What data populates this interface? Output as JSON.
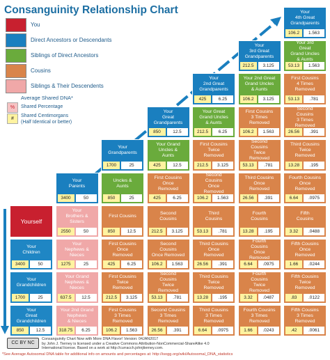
{
  "title": "Consanguinity Relationship Chart",
  "legend": [
    {
      "label": "You",
      "color": "#c8202f"
    },
    {
      "label": "Direct Ancestors or Descendants",
      "color": "#1a7fbf"
    },
    {
      "label": "Siblings of Direct Ancestors",
      "color": "#6aab3c"
    },
    {
      "label": "Cousins",
      "color": "#d9844a"
    },
    {
      "label": "Siblings & Their Descendents",
      "color": "#f0a8a8"
    }
  ],
  "avg_dna": {
    "heading": "Average Shared DNA*",
    "pct_chip": "%",
    "pct_label": "Shared Percentage",
    "cm_chip": "#",
    "cm_label": "Shared Centimorgans\n(Half Identical or better)"
  },
  "cells": [
    {
      "col": 0,
      "row": 6,
      "label": "Yourself",
      "type": "you"
    },
    {
      "col": 0,
      "row": 7,
      "label": "Your\nChildren",
      "pct": "3400",
      "cm": "50",
      "type": "lightblue"
    },
    {
      "col": 0,
      "row": 8,
      "label": "Your\nGrandchildren",
      "pct": "1700",
      "cm": "25",
      "type": "lightblue"
    },
    {
      "col": 0,
      "row": 9,
      "label": "Your\nGreat\nGrandchildren",
      "pct": "850",
      "cm": "12.5",
      "type": "lightblue"
    },
    {
      "col": 1,
      "row": 5,
      "label": "Your\nParents",
      "pct": "3400",
      "cm": "50",
      "type": "blue"
    },
    {
      "col": 1,
      "row": 6,
      "label": "Your\nBrothers &\nSisters",
      "pct": "2550",
      "cm": "50",
      "type": "pink"
    },
    {
      "col": 1,
      "row": 7,
      "label": "Your\nNephews &\nNieces",
      "pct": "1275",
      "cm": "25",
      "type": "pink"
    },
    {
      "col": 1,
      "row": 8,
      "label": "Your Grand\nNephews &\nNieces",
      "pct": "637.5",
      "cm": "12.5",
      "type": "pink"
    },
    {
      "col": 1,
      "row": 9,
      "label": "Your 2nd Grand\nNephews\n& Nieces",
      "pct": "318.75",
      "cm": "6.25",
      "type": "pink"
    },
    {
      "col": 2,
      "row": 4,
      "label": "Your\nGrandparents",
      "pct": "1700",
      "cm": "25",
      "type": "blue"
    },
    {
      "col": 2,
      "row": 5,
      "label": "Uncles &\nAunts",
      "pct": "850",
      "cm": "25",
      "type": "green"
    },
    {
      "col": 2,
      "row": 6,
      "label": "First Cousins",
      "pct": "850",
      "cm": "12.5",
      "type": "orange"
    },
    {
      "col": 2,
      "row": 7,
      "label": "First Cousins\nOnce\nRemoved",
      "pct": "425",
      "cm": "6.25",
      "type": "orange"
    },
    {
      "col": 2,
      "row": 8,
      "label": "First Cousins\nTwice\nRemoved",
      "pct": "212.5",
      "cm": "3.125",
      "type": "orange"
    },
    {
      "col": 2,
      "row": 9,
      "label": "First Cousins\n3 Times\nRemoved",
      "pct": "106.2",
      "cm": "1.563",
      "type": "orange"
    },
    {
      "col": 3,
      "row": 3,
      "label": "Your\nGreat\nGrandparents",
      "pct": "850",
      "cm": "12.5",
      "type": "blue"
    },
    {
      "col": 3,
      "row": 4,
      "label": "Your Grand\nUncles &\nAunts",
      "pct": "425",
      "cm": "12.5",
      "type": "green"
    },
    {
      "col": 3,
      "row": 5,
      "label": "First Cousins\nOnce\nRemoved",
      "pct": "425",
      "cm": "6.25",
      "type": "orange"
    },
    {
      "col": 3,
      "row": 6,
      "label": "Second\nCousins",
      "pct": "212.5",
      "cm": "3.125",
      "type": "orange"
    },
    {
      "col": 3,
      "row": 7,
      "label": "Second\nCousins\nOnce Removed",
      "pct": "106.2",
      "cm": "1.563",
      "type": "orange"
    },
    {
      "col": 3,
      "row": 8,
      "label": "Second\nCousins\nTwice\nRemoved",
      "pct": "53.13",
      "cm": ".781",
      "type": "orange"
    },
    {
      "col": 3,
      "row": 9,
      "label": "Second Cousins\n3 Times\nRemoved",
      "pct": "26.56",
      "cm": ".391",
      "type": "orange"
    },
    {
      "col": 4,
      "row": 2,
      "label": "Your\n2nd Great\nGrandparents",
      "pct": "425",
      "cm": "6.25",
      "type": "blue"
    },
    {
      "col": 4,
      "row": 3,
      "label": "Your Great\nGrand Uncles\n& Aunts",
      "pct": "212.5",
      "cm": "6.25",
      "type": "green"
    },
    {
      "col": 4,
      "row": 4,
      "label": "First Cousins\nTwice\nRemoved",
      "pct": "212.5",
      "cm": "3.125",
      "type": "orange"
    },
    {
      "col": 4,
      "row": 5,
      "label": "Second\nCousins\nOnce\nRemoved",
      "pct": "106.2",
      "cm": "1.563",
      "type": "orange"
    },
    {
      "col": 4,
      "row": 6,
      "label": "Third\nCousins",
      "pct": "53.13",
      "cm": ".781",
      "type": "orange"
    },
    {
      "col": 4,
      "row": 7,
      "label": "Third Cousins\nOnce\nRemoved",
      "pct": "26.56",
      "cm": ".391",
      "type": "orange"
    },
    {
      "col": 4,
      "row": 8,
      "label": "Third Cousins\nTwice\nRemoved",
      "pct": "13.28",
      "cm": ".195",
      "type": "orange"
    },
    {
      "col": 4,
      "row": 9,
      "label": "Third Cousins\n3 Times\nRemoved",
      "pct": "6.64",
      "cm": ".0975",
      "type": "orange"
    },
    {
      "col": 5,
      "row": 1,
      "label": "Your\n3rd Great\nGrandparents",
      "pct": "212.5",
      "cm": "3.125",
      "type": "blue"
    },
    {
      "col": 5,
      "row": 2,
      "label": "Your 2nd Great\nGrand Uncles\n& Aunts",
      "pct": "106.2",
      "cm": "3.125",
      "type": "green"
    },
    {
      "col": 5,
      "row": 3,
      "label": "First Cousins\n3 Times\nRemoved",
      "pct": "106.2",
      "cm": "1.563",
      "type": "orange"
    },
    {
      "col": 5,
      "row": 4,
      "label": "Second\nCousins\nTwice\nRemoved",
      "pct": "53.13",
      "cm": ".781",
      "type": "orange"
    },
    {
      "col": 5,
      "row": 5,
      "label": "Third Cousins\nOnce\nRemoved",
      "pct": "26.56",
      "cm": ".391",
      "type": "orange"
    },
    {
      "col": 5,
      "row": 6,
      "label": "Fourth\nCousins",
      "pct": "13.28",
      "cm": ".195",
      "type": "orange"
    },
    {
      "col": 5,
      "row": 7,
      "label": "Fourth\nCousins\nOnce\nRemoved",
      "pct": "6.64",
      "cm": ".0975",
      "type": "orange"
    },
    {
      "col": 5,
      "row": 8,
      "label": "Fourth\nCousins\nTwice\nRemoved",
      "pct": "3.32",
      "cm": ".0487",
      "type": "orange"
    },
    {
      "col": 5,
      "row": 9,
      "label": "Fourth Cousins\n3 Times\nRemoved",
      "pct": "1.66",
      "cm": ".0243",
      "type": "orange"
    },
    {
      "col": 6,
      "row": 0,
      "label": "Your\n4th Great\nGrandparents",
      "pct": "106.2",
      "cm": "1.563",
      "type": "blue"
    },
    {
      "col": 6,
      "row": 1,
      "label": "Your 3rd\nGreat\nGrand Uncles\n& Aunts",
      "pct": "53.13",
      "cm": "1.563",
      "type": "green"
    },
    {
      "col": 6,
      "row": 2,
      "label": "First Cousins\n4 Times\nRemoved",
      "pct": "53.13",
      "cm": ".781",
      "type": "orange"
    },
    {
      "col": 6,
      "row": 3,
      "label": "Second\nCousins\n3 Times\nRemoved",
      "pct": "26.56",
      "cm": ".391",
      "type": "orange"
    },
    {
      "col": 6,
      "row": 4,
      "label": "Third Cousins\nTwice\nRemoved",
      "pct": "13.28",
      "cm": ".195",
      "type": "orange"
    },
    {
      "col": 6,
      "row": 5,
      "label": "Fourth Cousins\nOnce\nRemoved",
      "pct": "6.64",
      "cm": ".0975",
      "type": "orange"
    },
    {
      "col": 6,
      "row": 6,
      "label": "Fifth\nCousins",
      "pct": "3.32",
      "cm": ".0488",
      "type": "orange"
    },
    {
      "col": 6,
      "row": 7,
      "label": "Fifth Cousins\nOnce\nRemoved",
      "pct": "1.66",
      "cm": ".0244",
      "type": "orange"
    },
    {
      "col": 6,
      "row": 8,
      "label": "Fifth Cousins\nTwice\nRemoved",
      "pct": ".83",
      "cm": ".0122",
      "type": "orange"
    },
    {
      "col": 6,
      "row": 9,
      "label": "Fifth Cousins\n3 Times\nRemoved",
      "pct": ".42",
      "cm": ".0061",
      "type": "orange"
    }
  ],
  "footer": {
    "cc_badge": "CC BY NC",
    "text": "Consanguinity Chart Now with More DNA Flavor! Version: 04JAN2017\nby John J. Tierney is licensed under a Creative Commons Attribution-NonCommercial-ShareAlike 4.0\nInternational license. Based on a work at http://curracch.johnjtierney.com.",
    "note": "*See Average Autosomal DNA table for additional info on amounts and percentages at: http://isogg.org/wiki/Autosomal_DNA_statistics"
  }
}
